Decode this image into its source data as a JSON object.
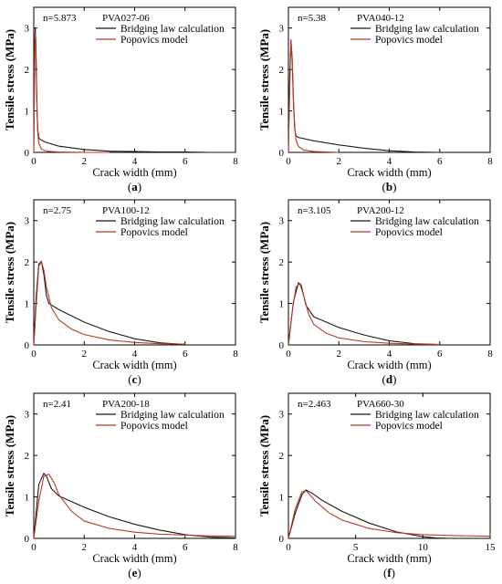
{
  "colors": {
    "bridging": "#1a1a1a",
    "popovics": "#b83a22"
  },
  "chart_data": [
    {
      "type": "line",
      "panel": "(a)",
      "n_label": "n=5.873",
      "specimen": "PVA027-06",
      "xlabel": "Crack width (mm)",
      "ylabel": "Tensile stress (MPa)",
      "xlim": [
        0,
        8
      ],
      "ylim": [
        0,
        3.5
      ],
      "xticks": [
        0,
        2,
        4,
        6,
        8
      ],
      "yticks": [
        0,
        1,
        2,
        3
      ],
      "legend": [
        "Bridging law calculation",
        "Popovics model"
      ],
      "series": [
        {
          "name": "Bridging law calculation",
          "x": [
            0,
            0.03,
            0.06,
            0.08,
            0.1,
            0.13,
            0.16,
            0.2,
            0.25,
            0.35,
            0.5,
            1,
            2,
            3,
            4,
            5,
            6,
            7,
            8
          ],
          "y": [
            0,
            2.5,
            3.0,
            2.6,
            1.9,
            1.0,
            0.55,
            0.35,
            0.32,
            0.28,
            0.24,
            0.15,
            0.07,
            0.03,
            0.02,
            0.01,
            0.01,
            0,
            0
          ]
        },
        {
          "name": "Popovics model",
          "x": [
            0,
            0.02,
            0.05,
            0.08,
            0.1,
            0.12,
            0.15,
            0.2,
            0.3,
            0.5,
            1,
            2,
            3
          ],
          "y": [
            0,
            1.2,
            2.9,
            2.75,
            2.1,
            1.3,
            0.55,
            0.22,
            0.08,
            0.03,
            0.01,
            0,
            0
          ]
        }
      ]
    },
    {
      "type": "line",
      "panel": "(b)",
      "n_label": "n=5.38",
      "specimen": "PVA040-12",
      "xlabel": "Crack width (mm)",
      "ylabel": "Tensile stress (MPa)",
      "xlim": [
        0,
        8
      ],
      "ylim": [
        0,
        3.5
      ],
      "xticks": [
        0,
        2,
        4,
        6,
        8
      ],
      "yticks": [
        0,
        1,
        2,
        3
      ],
      "legend": [
        "Bridging law calculation",
        "Popovics model"
      ],
      "series": [
        {
          "name": "Bridging law calculation",
          "x": [
            0,
            0.05,
            0.1,
            0.15,
            0.2,
            0.25,
            0.3,
            0.4,
            1,
            2,
            3,
            4,
            5,
            6
          ],
          "y": [
            0,
            1.8,
            2.7,
            2.2,
            1.2,
            0.55,
            0.4,
            0.36,
            0.28,
            0.18,
            0.1,
            0.04,
            0.01,
            0
          ]
        },
        {
          "name": "Popovics model",
          "x": [
            0,
            0.05,
            0.1,
            0.15,
            0.2,
            0.25,
            0.3,
            0.4,
            0.6,
            1,
            2
          ],
          "y": [
            0,
            1.5,
            2.72,
            2.3,
            1.3,
            0.6,
            0.3,
            0.14,
            0.06,
            0.02,
            0
          ]
        }
      ]
    },
    {
      "type": "line",
      "panel": "(c)",
      "n_label": "n=2.75",
      "specimen": "PVA100-12",
      "xlabel": "Crack width (mm)",
      "ylabel": "Tensile stress (MPa)",
      "xlim": [
        0,
        8
      ],
      "ylim": [
        0,
        3.5
      ],
      "xticks": [
        0,
        2,
        4,
        6,
        8
      ],
      "yticks": [
        0,
        1,
        2,
        3
      ],
      "legend": [
        "Bridging law calculation",
        "Popovics model"
      ],
      "series": [
        {
          "name": "Bridging law calculation",
          "x": [
            0,
            0.1,
            0.2,
            0.3,
            0.4,
            0.5,
            0.6,
            1,
            2,
            3,
            4,
            5,
            6
          ],
          "y": [
            0,
            1.2,
            1.95,
            2.02,
            1.7,
            1.2,
            1.0,
            0.85,
            0.55,
            0.32,
            0.15,
            0.05,
            0.01
          ]
        },
        {
          "name": "Popovics model",
          "x": [
            0,
            0.1,
            0.2,
            0.3,
            0.4,
            0.5,
            0.7,
            1,
            1.5,
            2,
            3,
            4,
            5,
            6
          ],
          "y": [
            0,
            1.0,
            1.9,
            2.02,
            1.8,
            1.4,
            0.9,
            0.6,
            0.38,
            0.25,
            0.12,
            0.06,
            0.03,
            0.02
          ]
        }
      ]
    },
    {
      "type": "line",
      "panel": "(d)",
      "n_label": "n=3.105",
      "specimen": "PVA200-12",
      "xlabel": "Crack width (mm)",
      "ylabel": "Tensile stress (MPa)",
      "xlim": [
        0,
        8
      ],
      "ylim": [
        0,
        3.5
      ],
      "xticks": [
        0,
        2,
        4,
        6,
        8
      ],
      "yticks": [
        0,
        1,
        2,
        3
      ],
      "legend": [
        "Bridging law calculation",
        "Popovics model"
      ],
      "series": [
        {
          "name": "Bridging law calculation",
          "x": [
            0,
            0.2,
            0.4,
            0.5,
            0.7,
            1,
            2,
            3,
            4,
            5,
            6
          ],
          "y": [
            0,
            1.05,
            1.5,
            1.45,
            0.95,
            0.68,
            0.42,
            0.24,
            0.1,
            0.03,
            0.01
          ]
        },
        {
          "name": "Popovics model",
          "x": [
            0,
            0.15,
            0.3,
            0.45,
            0.6,
            0.8,
            1,
            1.5,
            2,
            3,
            4,
            5,
            6
          ],
          "y": [
            0,
            0.8,
            1.4,
            1.48,
            1.2,
            0.75,
            0.5,
            0.28,
            0.17,
            0.08,
            0.04,
            0.02,
            0.01
          ]
        }
      ]
    },
    {
      "type": "line",
      "panel": "(e)",
      "n_label": "n=2.41",
      "specimen": "PVA200-18",
      "xlabel": "Crack width (mm)",
      "ylabel": "Tensile stress (MPa)",
      "xlim": [
        0,
        8
      ],
      "ylim": [
        0,
        3.5
      ],
      "xticks": [
        0,
        2,
        4,
        6,
        8
      ],
      "yticks": [
        0,
        1,
        2,
        3
      ],
      "legend": [
        "Bridging law calculation",
        "Popovics model"
      ],
      "series": [
        {
          "name": "Bridging law calculation",
          "x": [
            0,
            0.2,
            0.4,
            0.5,
            0.7,
            1,
            2,
            3,
            4,
            5,
            6,
            7,
            8
          ],
          "y": [
            0,
            1.3,
            1.57,
            1.5,
            1.2,
            1.02,
            0.75,
            0.52,
            0.34,
            0.2,
            0.09,
            0.03,
            0.01
          ]
        },
        {
          "name": "Popovics model",
          "x": [
            0,
            0.2,
            0.4,
            0.6,
            0.8,
            1,
            1.5,
            2,
            3,
            4,
            5,
            6,
            7,
            8
          ],
          "y": [
            0,
            0.9,
            1.5,
            1.55,
            1.35,
            1.05,
            0.65,
            0.42,
            0.24,
            0.15,
            0.1,
            0.08,
            0.06,
            0.05
          ]
        }
      ]
    },
    {
      "type": "line",
      "panel": "(f)",
      "n_label": "n=2.463",
      "specimen": "PVA660-30",
      "xlabel": "Crack width (mm)",
      "ylabel": "Tensile stress (MPa)",
      "xlim": [
        0,
        15
      ],
      "ylim": [
        0,
        3.5
      ],
      "xticks": [
        0,
        5,
        10,
        15
      ],
      "yticks": [
        0,
        1,
        2,
        3
      ],
      "legend": [
        "Bridging law calculation",
        "Popovics model"
      ],
      "series": [
        {
          "name": "Bridging law calculation",
          "x": [
            0,
            0.5,
            1,
            1.3,
            1.8,
            2.5,
            4,
            6,
            8,
            10,
            11,
            12
          ],
          "y": [
            0,
            0.6,
            1.05,
            1.17,
            1.08,
            0.92,
            0.65,
            0.37,
            0.16,
            0.04,
            0.01,
            0
          ]
        },
        {
          "name": "Popovics model",
          "x": [
            0,
            0.5,
            1,
            1.3,
            1.6,
            2,
            3,
            4,
            6,
            8,
            10,
            12,
            15
          ],
          "y": [
            0,
            0.7,
            1.12,
            1.15,
            1.05,
            0.9,
            0.62,
            0.44,
            0.24,
            0.14,
            0.09,
            0.07,
            0.05
          ]
        }
      ]
    }
  ]
}
